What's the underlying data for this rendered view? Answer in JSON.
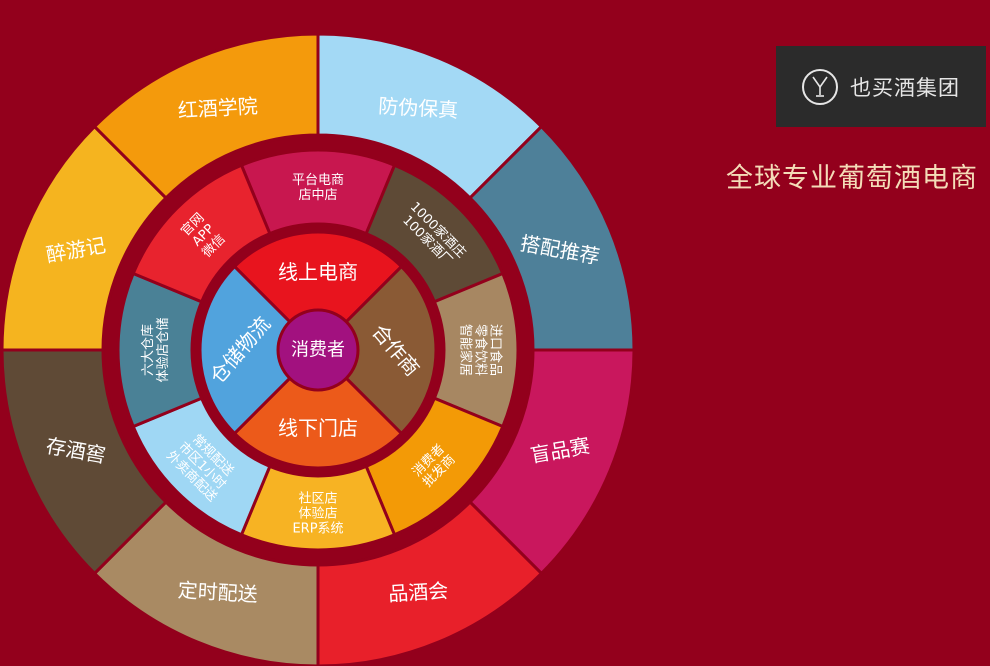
{
  "center": {
    "label": "消费者",
    "color": "#a2117f"
  },
  "core": [
    {
      "label": "线上电商",
      "color": "#e8141e"
    },
    {
      "label": "合作商",
      "color": "#8a5a35"
    },
    {
      "label": "线下门店",
      "color": "#ec5a1a"
    },
    {
      "label": "仓储物流",
      "color": "#51a3dd"
    }
  ],
  "middle": [
    {
      "lines": [
        "平台电商",
        "店中店"
      ],
      "color": "#c8174f"
    },
    {
      "lines": [
        "1000家酒庄",
        "100家酒厂"
      ],
      "color": "#5e4a36"
    },
    {
      "lines": [
        "进口食品",
        "零食饮料",
        "智能家居"
      ],
      "color": "#a78762"
    },
    {
      "lines": [
        "消费者",
        "批发商"
      ],
      "color": "#f39a06"
    },
    {
      "lines": [
        "社区店",
        "体验店",
        "ERP系统"
      ],
      "color": "#f7b323"
    },
    {
      "lines": [
        "常规配送",
        "市区1小时",
        "外卖商配送"
      ],
      "color": "#9fd7f4"
    },
    {
      "lines": [
        "六大仓库",
        "体验店仓储"
      ],
      "color": "#4a8196"
    },
    {
      "lines": [
        "官网",
        "APP",
        "微信"
      ],
      "color": "#e8232e"
    }
  ],
  "outer": [
    {
      "label": "防伪保真",
      "color": "#a3d9f5"
    },
    {
      "label": "搭配推荐",
      "color": "#4e8099"
    },
    {
      "label": "盲品赛",
      "color": "#c9175d"
    },
    {
      "label": "品酒会",
      "color": "#e8202a"
    },
    {
      "label": "定时配送",
      "color": "#a98a63"
    },
    {
      "label": "存酒窖",
      "color": "#5f4a36"
    },
    {
      "label": "醉游记",
      "color": "#f5b41f"
    },
    {
      "label": "红酒学院",
      "color": "#f49a0c"
    }
  ],
  "brand": {
    "name": "也买酒集团",
    "logo_icon": "wine-glass-icon"
  },
  "tagline": "全球专业葡萄酒电商"
}
